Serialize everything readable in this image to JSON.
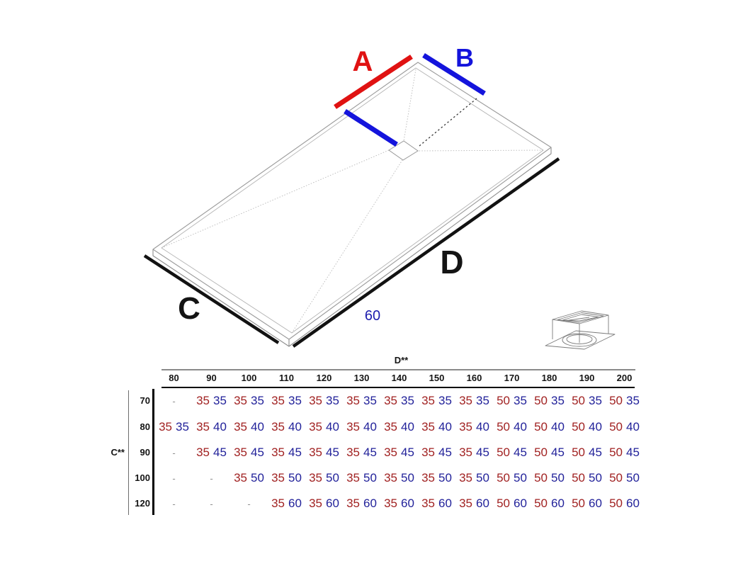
{
  "diagram": {
    "edge_labels": {
      "a": "A",
      "b": "B",
      "c": "C",
      "d": "D"
    },
    "drain_offset_label": "60",
    "drain_icon_name": "square-drain-grate-icon",
    "colors": {
      "dimension_a_red": "#e01212",
      "dimension_b_blue": "#1414dc",
      "dimension_cd_black": "#141414",
      "drain_offset_blue": "#1c1cae"
    }
  },
  "table": {
    "col_axis_label": "D**",
    "row_axis_label": "C**",
    "empty_cell": "-",
    "value_colors": {
      "first": "#a12222",
      "second": "#22229a"
    },
    "columns": [
      "80",
      "90",
      "100",
      "110",
      "120",
      "130",
      "140",
      "150",
      "160",
      "170",
      "180",
      "190",
      "200"
    ],
    "rows": [
      {
        "label": "70",
        "cells": [
          "-",
          [
            "35",
            "35"
          ],
          [
            "35",
            "35"
          ],
          [
            "35",
            "35"
          ],
          [
            "35",
            "35"
          ],
          [
            "35",
            "35"
          ],
          [
            "35",
            "35"
          ],
          [
            "35",
            "35"
          ],
          [
            "35",
            "35"
          ],
          [
            "50",
            "35"
          ],
          [
            "50",
            "35"
          ],
          [
            "50",
            "35"
          ],
          [
            "50",
            "35"
          ]
        ]
      },
      {
        "label": "80",
        "cells": [
          [
            "35",
            "35"
          ],
          [
            "35",
            "40"
          ],
          [
            "35",
            "40"
          ],
          [
            "35",
            "40"
          ],
          [
            "35",
            "40"
          ],
          [
            "35",
            "40"
          ],
          [
            "35",
            "40"
          ],
          [
            "35",
            "40"
          ],
          [
            "35",
            "40"
          ],
          [
            "50",
            "40"
          ],
          [
            "50",
            "40"
          ],
          [
            "50",
            "40"
          ],
          [
            "50",
            "40"
          ]
        ]
      },
      {
        "label": "90",
        "cells": [
          "-",
          [
            "35",
            "45"
          ],
          [
            "35",
            "45"
          ],
          [
            "35",
            "45"
          ],
          [
            "35",
            "45"
          ],
          [
            "35",
            "45"
          ],
          [
            "35",
            "45"
          ],
          [
            "35",
            "45"
          ],
          [
            "35",
            "45"
          ],
          [
            "50",
            "45"
          ],
          [
            "50",
            "45"
          ],
          [
            "50",
            "45"
          ],
          [
            "50",
            "45"
          ]
        ]
      },
      {
        "label": "100",
        "cells": [
          "-",
          "-",
          [
            "35",
            "50"
          ],
          [
            "35",
            "50"
          ],
          [
            "35",
            "50"
          ],
          [
            "35",
            "50"
          ],
          [
            "35",
            "50"
          ],
          [
            "35",
            "50"
          ],
          [
            "35",
            "50"
          ],
          [
            "50",
            "50"
          ],
          [
            "50",
            "50"
          ],
          [
            "50",
            "50"
          ],
          [
            "50",
            "50"
          ]
        ]
      },
      {
        "label": "120",
        "cells": [
          "-",
          "-",
          "-",
          [
            "35",
            "60"
          ],
          [
            "35",
            "60"
          ],
          [
            "35",
            "60"
          ],
          [
            "35",
            "60"
          ],
          [
            "35",
            "60"
          ],
          [
            "35",
            "60"
          ],
          [
            "50",
            "60"
          ],
          [
            "50",
            "60"
          ],
          [
            "50",
            "60"
          ],
          [
            "50",
            "60"
          ]
        ]
      }
    ]
  }
}
